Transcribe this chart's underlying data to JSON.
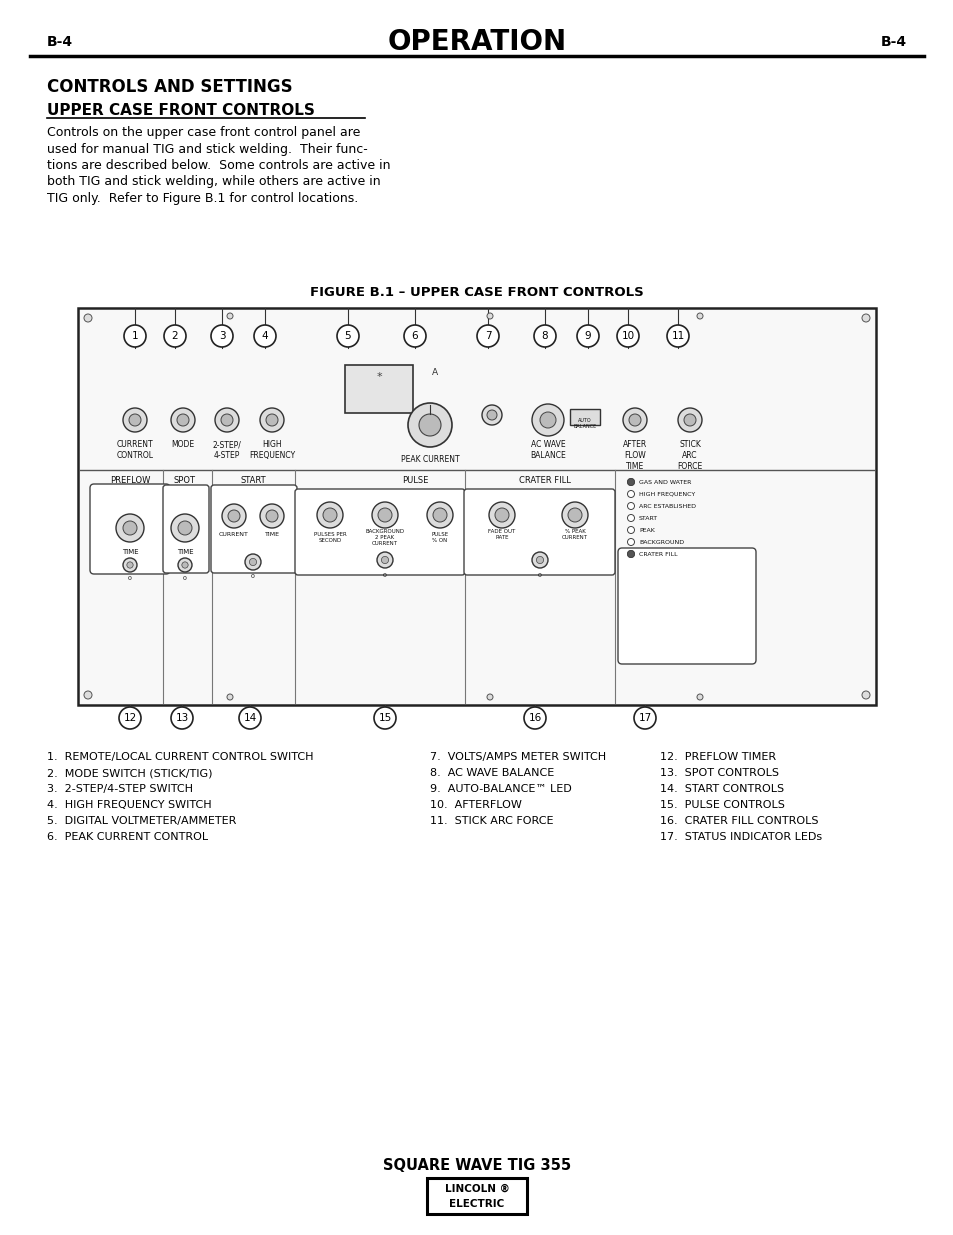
{
  "page_label_left": "B-4",
  "page_label_right": "B-4",
  "main_title": "OPERATION",
  "section_title": "CONTROLS AND SETTINGS",
  "subsection_title": "UPPER CASE FRONT CONTROLS",
  "body_text_lines": [
    "Controls on the upper case front control panel are",
    "used for manual TIG and stick welding.  Their func-",
    "tions are described below.  Some controls are active in",
    "both TIG and stick welding, while others are active in",
    "TIG only.  Refer to Figure B.1 for control locations."
  ],
  "figure_title": "FIGURE B.1 – UPPER CASE FRONT CONTROLS",
  "list_col1": [
    "1.  REMOTE/LOCAL CURRENT CONTROL SWITCH",
    "2.  MODE SWITCH (STICK/TIG)",
    "3.  2-STEP/4-STEP SWITCH",
    "4.  HIGH FREQUENCY SWITCH",
    "5.  DIGITAL VOLTMETER/AMMETER",
    "6.  PEAK CURRENT CONTROL"
  ],
  "list_col2": [
    "7.  VOLTS/AMPS METER SWITCH",
    "8.  AC WAVE BALANCE",
    "9.  AUTO-BALANCE™ LED",
    "10.  AFTERFLOW",
    "11.  STICK ARC FORCE"
  ],
  "list_col3": [
    "12.  PREFLOW TIMER",
    "13.  SPOT CONTROLS",
    "14.  START CONTROLS",
    "15.  PULSE CONTROLS",
    "16.  CRATER FILL CONTROLS",
    "17.  STATUS INDICATOR LEDs"
  ],
  "footer_title": "SQUARE WAVE TIG 355",
  "bg_color": "#ffffff",
  "text_color": "#000000",
  "line_color": "#000000",
  "panel_bg": "#f8f8f8",
  "panel_edge": "#222222"
}
